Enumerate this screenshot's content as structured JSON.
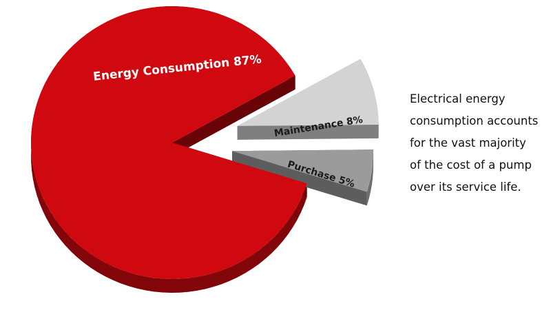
{
  "chart_data": {
    "type": "pie",
    "slices": [
      {
        "label": "Energy Consumption",
        "value": 87,
        "value_label": "87%",
        "color": "#d0080f",
        "exploded": false
      },
      {
        "label": "Maintenance",
        "value": 8,
        "value_label": "8%",
        "color": "#d3d3d3",
        "exploded": true
      },
      {
        "label": "Purchase",
        "value": 5,
        "value_label": "5%",
        "color": "#9b9b9b",
        "exploded": true
      }
    ],
    "style": "3d"
  },
  "caption": {
    "lines": [
      "Electrical energy",
      "consumption accounts",
      "for the vast majority",
      "of the cost of a pump",
      "over its service life."
    ]
  }
}
